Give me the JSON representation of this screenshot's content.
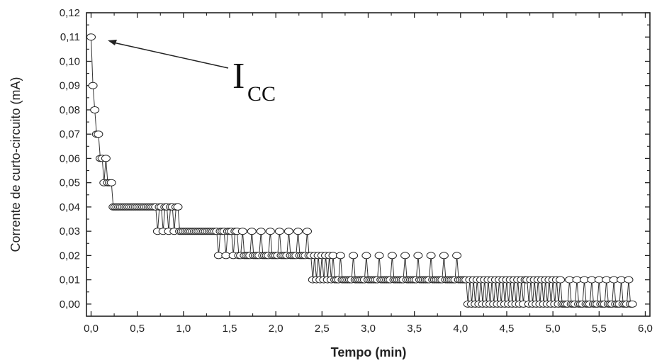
{
  "chart_data": {
    "type": "scatter",
    "title": "",
    "xlabel": "Tempo (min)",
    "ylabel": "Corrente de curto-circuito (mA)",
    "xlim": [
      -0.05,
      6.05
    ],
    "ylim": [
      -0.005,
      0.12
    ],
    "x_ticks": [
      "0,0",
      "0,5",
      "1,0",
      "1,5",
      "2,0",
      "2,5",
      "3,0",
      "3,5",
      "4,0",
      "4,5",
      "5,0",
      "5,5",
      "6,0"
    ],
    "y_ticks": [
      "0,00",
      "0,01",
      "0,02",
      "0,03",
      "0,04",
      "0,05",
      "0,06",
      "0,07",
      "0,08",
      "0,09",
      "0,10",
      "0,11",
      "0,12"
    ],
    "annotation": {
      "main": "I",
      "sub": "CC",
      "points_to": [
        0.02,
        0.11
      ]
    },
    "grid": false,
    "marker": "open-circle",
    "line": "connected",
    "sampling_interval_min": 0.02,
    "segments": [
      {
        "x_start": 0.0,
        "x_end": 0.0,
        "values": [
          0.11
        ]
      },
      {
        "x_start": 0.02,
        "x_end": 0.02,
        "values": [
          0.09
        ]
      },
      {
        "x_start": 0.04,
        "x_end": 0.04,
        "values": [
          0.08
        ]
      },
      {
        "x_start": 0.06,
        "x_end": 0.08,
        "values": [
          0.07
        ]
      },
      {
        "x_start": 0.1,
        "x_end": 0.12,
        "values": [
          0.06
        ]
      },
      {
        "x_start": 0.14,
        "x_end": 0.18,
        "values": [
          0.05,
          0.06
        ]
      },
      {
        "x_start": 0.2,
        "x_end": 0.22,
        "values": [
          0.05
        ]
      },
      {
        "x_start": 0.24,
        "x_end": 0.7,
        "values": [
          0.04
        ]
      },
      {
        "x_start": 0.72,
        "x_end": 0.96,
        "values": [
          0.03,
          0.04,
          0.04
        ]
      },
      {
        "x_start": 0.98,
        "x_end": 1.34,
        "values": [
          0.03
        ]
      },
      {
        "x_start": 1.36,
        "x_end": 1.58,
        "values": [
          0.03,
          0.02,
          0.03,
          0.03
        ]
      },
      {
        "x_start": 1.6,
        "x_end": 2.36,
        "values": [
          0.02,
          0.02,
          0.03,
          0.02,
          0.02
        ]
      },
      {
        "x_start": 2.38,
        "x_end": 2.62,
        "values": [
          0.02,
          0.01
        ]
      },
      {
        "x_start": 2.64,
        "x_end": 4.06,
        "values": [
          0.01,
          0.01,
          0.01,
          0.02,
          0.01,
          0.01,
          0.01
        ]
      },
      {
        "x_start": 4.08,
        "x_end": 4.7,
        "values": [
          0.0,
          0.01
        ]
      },
      {
        "x_start": 4.72,
        "x_end": 5.1,
        "values": [
          0.01,
          0.0
        ]
      },
      {
        "x_start": 5.12,
        "x_end": 5.86,
        "values": [
          0.0,
          0.0,
          0.0,
          0.01
        ]
      }
    ]
  }
}
